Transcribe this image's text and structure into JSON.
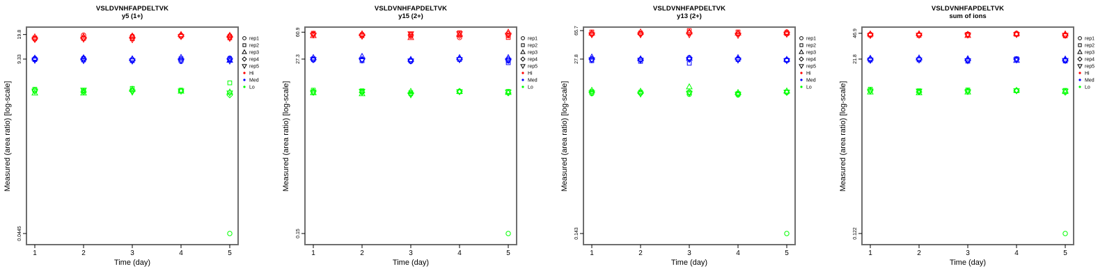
{
  "chart_data": {
    "type": "scatter",
    "yscale": "log",
    "grid": false,
    "legend_position": "right",
    "x": [
      1,
      2,
      3,
      4,
      5
    ],
    "x_tick_labels": [
      "1",
      "2",
      "3",
      "4",
      "5"
    ],
    "xlabel": "Time (day)",
    "ylabel": "Measured (area ratio) [log-scale]",
    "reps": [
      "rep1",
      "rep2",
      "rep3",
      "rep4",
      "rep5"
    ],
    "rep_symbols": [
      "circle",
      "square",
      "triangle-up",
      "diamond",
      "triangle-down"
    ],
    "levels": [
      "Hi",
      "Med",
      "Lo"
    ],
    "colors": {
      "Hi": "#FF0000",
      "Med": "#0000FF",
      "Lo": "#00FF00",
      "axis": "#000000",
      "box": "#6e6e6e"
    },
    "legend": [
      {
        "label": "rep1",
        "glyph": "circle",
        "color": "#000000"
      },
      {
        "label": "rep2",
        "glyph": "square",
        "color": "#000000"
      },
      {
        "label": "rep3",
        "glyph": "triangle-up",
        "color": "#000000"
      },
      {
        "label": "rep4",
        "glyph": "diamond",
        "color": "#000000"
      },
      {
        "label": "rep5",
        "glyph": "triangle-down",
        "color": "#000000"
      },
      {
        "label": "Hi",
        "glyph": "dot",
        "color": "#FF0000"
      },
      {
        "label": "Med",
        "glyph": "dot",
        "color": "#0000FF"
      },
      {
        "label": "Lo",
        "glyph": "dot",
        "color": "#00FF00"
      }
    ],
    "panels": [
      {
        "title": "VSLDVNHFAPDELTVK",
        "subtitle": "y5 (1+)",
        "ytick_labels": [
          "19.8",
          "9.33",
          "0.0445"
        ],
        "ytick_values": [
          19.8,
          9.33,
          0.0445
        ],
        "series": {
          "Hi": [
            [
              17.2,
              17.8,
              18.4,
              17.5,
              17.0
            ],
            [
              19.4,
              17.6,
              18.5,
              17.9,
              17.2
            ],
            [
              18.8,
              17.4,
              18.9,
              18.1,
              16.9
            ],
            [
              19.3,
              18.9,
              19.8,
              19.1,
              18.6
            ],
            [
              19.0,
              17.9,
              19.3,
              18.4,
              17.6
            ]
          ],
          "Med": [
            [
              9.5,
              9.2,
              9.6,
              9.3,
              9.0
            ],
            [
              9.6,
              9.1,
              9.7,
              9.3,
              8.9
            ],
            [
              9.2,
              8.9,
              9.4,
              9.1,
              8.8
            ],
            [
              8.7,
              9.4,
              9.8,
              9.1,
              8.9
            ],
            [
              9.6,
              9.2,
              9.0,
              9.4,
              8.8
            ]
          ],
          "Lo": [
            [
              3.5,
              3.7,
              3.3,
              3.6,
              3.5
            ],
            [
              3.5,
              3.6,
              3.3,
              3.4,
              3.6
            ],
            [
              3.6,
              3.8,
              3.7,
              3.5,
              3.4
            ],
            [
              3.5,
              3.6,
              3.5,
              3.5,
              3.5
            ],
            [
              0.0445,
              4.5,
              3.4,
              3.1,
              3.3
            ]
          ]
        },
        "outlier": {
          "level": "Lo",
          "day": 5,
          "rep": "rep1",
          "value": 0.0445
        }
      },
      {
        "title": "VSLDVNHFAPDELTVK",
        "subtitle": "y15 (2+)",
        "ytick_labels": [
          "60.9",
          "27.3",
          "0.15"
        ],
        "ytick_values": [
          60.9,
          27.3,
          0.15
        ],
        "series": {
          "Hi": [
            [
              57,
              59,
              55,
              58,
              56
            ],
            [
              57,
              55,
              58,
              56,
              54
            ],
            [
              54,
              57,
              52,
              56,
              58
            ],
            [
              52,
              60,
              57,
              55,
              58
            ],
            [
              55,
              52,
              60.9,
              58,
              56
            ]
          ],
          "Med": [
            [
              26.5,
              27.5,
              28.5,
              27.0,
              26.8
            ],
            [
              27.0,
              26.0,
              29.5,
              27.2,
              26.5
            ],
            [
              25.5,
              26.0,
              27.0,
              26.3,
              25.8
            ],
            [
              27.5,
              27.0,
              28.5,
              27.3,
              26.8
            ],
            [
              26.0,
              24.5,
              28.5,
              27.0,
              26.2
            ]
          ],
          "Lo": [
            [
              10.2,
              10.8,
              10.0,
              10.4,
              10.1
            ],
            [
              10.3,
              10.6,
              9.7,
              10.1,
              10.4
            ],
            [
              9.6,
              10.0,
              10.4,
              9.8,
              9.4
            ],
            [
              10.5,
              10.3,
              10.4,
              10.4,
              10.3
            ],
            [
              0.15,
              10.4,
              10.1,
              9.9,
              10.2
            ]
          ]
        },
        "outlier": {
          "level": "Lo",
          "day": 5,
          "rep": "rep1",
          "value": 0.15
        }
      },
      {
        "title": "VSLDVNHFAPDELTVK",
        "subtitle": "y13 (2+)",
        "ytick_labels": [
          "65.7",
          "27.8",
          "0.143"
        ],
        "ytick_values": [
          65.7,
          27.8,
          0.143
        ],
        "series": {
          "Hi": [
            [
              59,
              63,
              61,
              60,
              58
            ],
            [
              60,
              61,
              63,
              59,
              58
            ],
            [
              62,
              65.7,
              63,
              61,
              58
            ],
            [
              59,
              63,
              61,
              60,
              57
            ],
            [
              63,
              60,
              62,
              61,
              59
            ]
          ],
          "Med": [
            [
              27.5,
              26.5,
              29.5,
              27.8,
              27.2
            ],
            [
              27.5,
              26.0,
              28.0,
              27.3,
              26.8
            ],
            [
              29.0,
              24.5,
              28.5,
              28.2,
              27.5
            ],
            [
              28.0,
              27.5,
              29.0,
              27.8,
              27.0
            ],
            [
              27.2,
              26.8,
              27.5,
              27.0,
              26.5
            ]
          ],
          "Lo": [
            [
              9.8,
              10.4,
              10.8,
              10.2,
              10.0
            ],
            [
              9.9,
              10.2,
              10.5,
              10.0,
              9.7
            ],
            [
              9.6,
              10.1,
              12.0,
              10.3,
              9.9
            ],
            [
              9.4,
              9.8,
              10.1,
              9.7,
              9.6
            ],
            [
              0.143,
              10.3,
              10.6,
              10.1,
              10.2
            ]
          ]
        },
        "outlier": {
          "level": "Lo",
          "day": 5,
          "rep": "rep1",
          "value": 0.143
        }
      },
      {
        "title": "VSLDVNHFAPDELTVK",
        "subtitle": "sum of ions",
        "ytick_labels": [
          "46.9",
          "21.8",
          "0.122"
        ],
        "ytick_values": [
          46.9,
          21.8,
          0.122
        ],
        "series": {
          "Hi": [
            [
              45.5,
              44.5,
              46.0,
              45.0,
              44.0
            ],
            [
              45.0,
              44.0,
              46.2,
              45.2,
              44.3
            ],
            [
              44.8,
              45.5,
              44.0,
              45.8,
              44.5
            ],
            [
              46.9,
              45.5,
              46.2,
              45.8,
              45.2
            ],
            [
              44.5,
              43.5,
              46.0,
              45.0,
              44.2
            ]
          ],
          "Med": [
            [
              21.8,
              21.2,
              22.3,
              21.5,
              21.0
            ],
            [
              21.9,
              21.3,
              22.5,
              21.6,
              21.2
            ],
            [
              21.0,
              20.5,
              22.0,
              21.4,
              20.8
            ],
            [
              21.5,
              22.0,
              21.0,
              21.7,
              21.3
            ],
            [
              21.0,
              20.6,
              21.8,
              21.3,
              20.9
            ]
          ],
          "Lo": [
            [
              8.5,
              8.9,
              8.2,
              8.6,
              8.4
            ],
            [
              8.3,
              8.5,
              8.0,
              8.2,
              8.4
            ],
            [
              8.4,
              8.7,
              8.2,
              8.5,
              8.3
            ],
            [
              8.6,
              8.5,
              8.6,
              8.5,
              8.5
            ],
            [
              0.122,
              8.6,
              8.3,
              8.1,
              8.4
            ]
          ]
        },
        "outlier": {
          "level": "Lo",
          "day": 5,
          "rep": "rep1",
          "value": 0.122
        }
      }
    ]
  }
}
